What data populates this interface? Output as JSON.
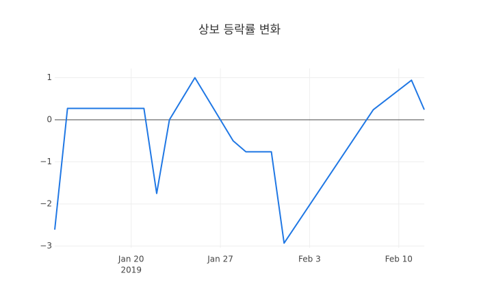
{
  "chart_data": {
    "type": "line",
    "title": "상보 등락률 변화",
    "x": [
      "2019-01-14",
      "2019-01-15",
      "2019-01-16",
      "2019-01-17",
      "2019-01-18",
      "2019-01-21",
      "2019-01-22",
      "2019-01-23",
      "2019-01-25",
      "2019-01-28",
      "2019-01-29",
      "2019-01-30",
      "2019-01-31",
      "2019-02-01",
      "2019-02-08",
      "2019-02-11",
      "2019-02-12"
    ],
    "series": [
      {
        "color": "#1f77e4",
        "values": [
          -2.61,
          0.27,
          0.27,
          0.27,
          0.27,
          0.27,
          -1.75,
          0.0,
          1.0,
          -0.5,
          -0.76,
          -0.76,
          -0.76,
          -2.93,
          0.24,
          0.94,
          0.24
        ]
      }
    ],
    "xlim": [
      "2019-01-14",
      "2019-02-12"
    ],
    "xticks": [
      {
        "value": "2019-01-20",
        "label": "Jan 20"
      },
      {
        "value": "2019-01-27",
        "label": "Jan 27"
      },
      {
        "value": "2019-02-03",
        "label": "Feb 3"
      },
      {
        "value": "2019-02-10",
        "label": "Feb 10"
      }
    ],
    "xtick_year": "2019",
    "ylim": [
      -3.04,
      1.22
    ],
    "yticks": [
      {
        "value": -3,
        "label": "−3"
      },
      {
        "value": -2,
        "label": "−2"
      },
      {
        "value": -1,
        "label": "−1"
      },
      0,
      1
    ],
    "grid": true,
    "zeroline": true
  }
}
